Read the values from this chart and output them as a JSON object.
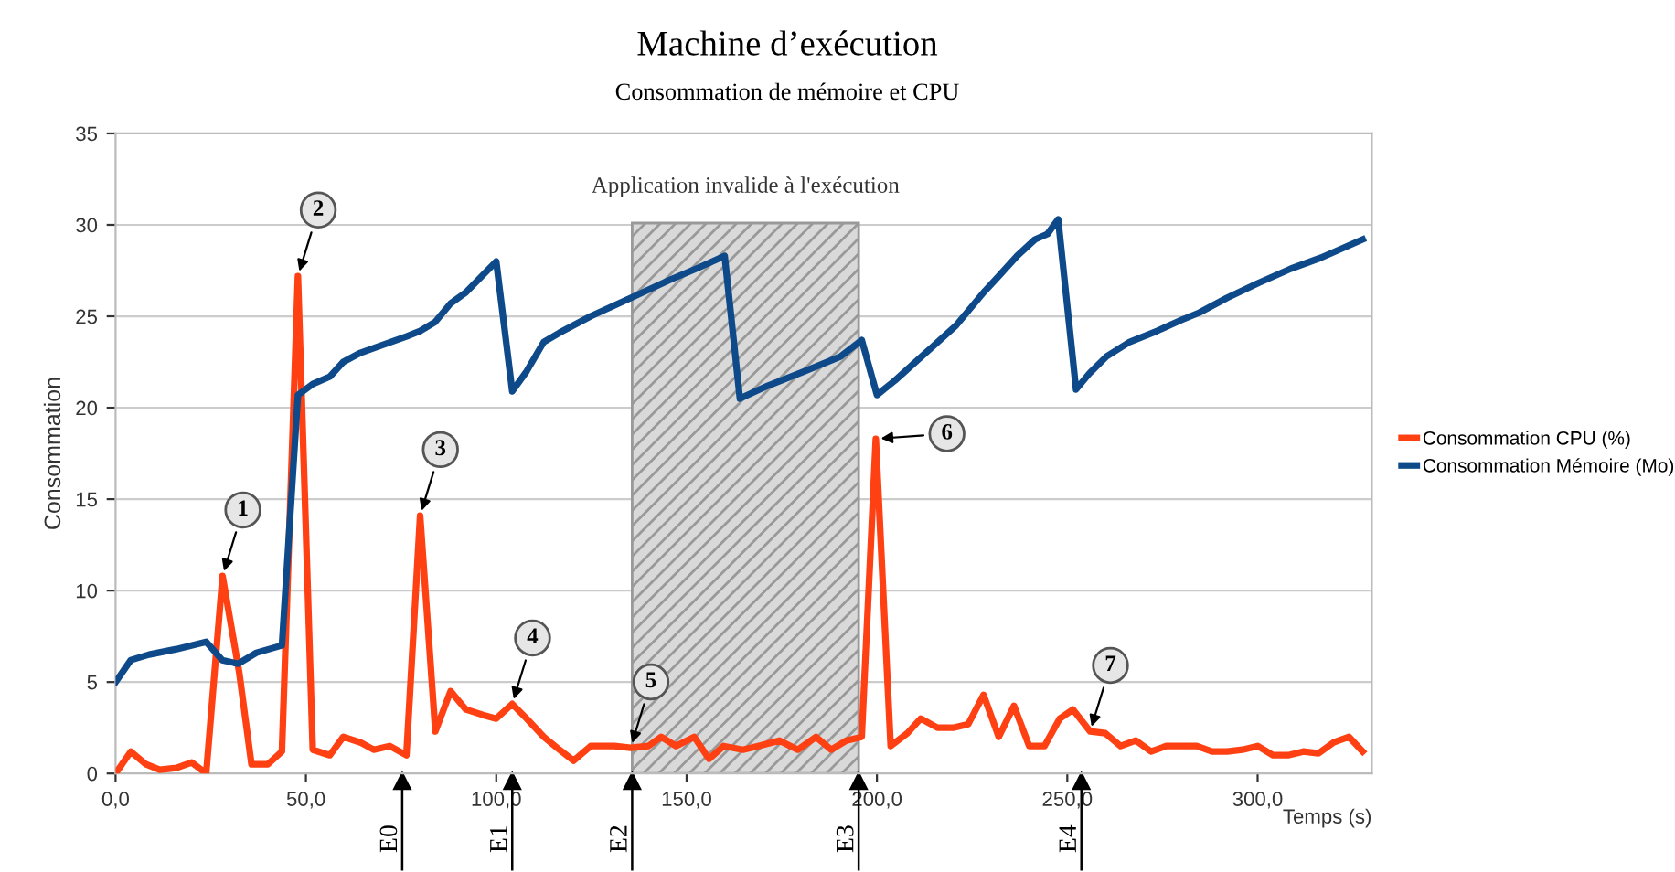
{
  "chart_data": {
    "type": "line",
    "title": "Machine d’exécution",
    "subtitle": "Consommation de mémoire et CPU",
    "xlabel": "Temps (s)",
    "ylabel": "Consommation",
    "xlim": [
      0,
      330
    ],
    "xticks": [
      {
        "value": 0,
        "label": "0,0"
      },
      {
        "value": 50,
        "label": "50,0"
      },
      {
        "value": 100,
        "label": "100,0"
      },
      {
        "value": 150,
        "label": "150,0"
      },
      {
        "value": 200,
        "label": "200,0"
      },
      {
        "value": 250,
        "label": "250,0"
      },
      {
        "value": 300,
        "label": "300,0"
      }
    ],
    "ylim": [
      0,
      35
    ],
    "yticks": [
      0,
      5,
      10,
      15,
      20,
      25,
      30,
      35
    ],
    "grid": "y",
    "legend": "right",
    "line_style": "solid",
    "series": [
      {
        "name": "Consommation CPU (%)",
        "color": "#ff4013",
        "x": [
          0,
          4,
          8,
          11.6,
          16,
          20,
          23.8,
          28.1,
          32.5,
          35.7,
          40,
          43.7,
          47.9,
          51.8,
          56.3,
          59.8,
          64.3,
          67.8,
          72,
          76.4,
          80,
          84,
          88,
          92,
          96.5,
          100,
          104.2,
          108,
          112.5,
          116.6,
          120.3,
          124.8,
          131,
          135.3,
          140,
          143.3,
          147.2,
          152,
          155.9,
          159.7,
          164.8,
          168.8,
          174.4,
          179.2,
          184,
          188,
          192,
          196,
          199.7,
          203.6,
          208,
          211.5,
          215.9,
          220,
          224,
          228,
          232,
          236,
          240,
          244,
          248,
          251.5,
          256,
          260,
          264,
          268,
          272,
          276,
          280,
          284,
          288,
          292,
          296,
          300,
          304,
          308,
          312,
          316,
          320,
          324,
          327.6
        ],
        "values": [
          0,
          1.2,
          0.5,
          0.2,
          0.3,
          0.6,
          0,
          10.8,
          5.5,
          0.5,
          0.5,
          1.2,
          27.2,
          1.3,
          1.0,
          2.0,
          1.7,
          1.3,
          1.5,
          1.0,
          14.1,
          2.3,
          4.5,
          3.5,
          3.2,
          3.0,
          3.8,
          3.0,
          2.0,
          1.3,
          0.7,
          1.5,
          1.5,
          1.4,
          1.5,
          2.0,
          1.5,
          2.0,
          0.8,
          1.5,
          1.3,
          1.5,
          1.8,
          1.3,
          2.0,
          1.3,
          1.8,
          2.0,
          18.3,
          1.5,
          2.2,
          3.0,
          2.5,
          2.5,
          2.7,
          4.3,
          2.0,
          3.7,
          1.5,
          1.5,
          3.0,
          3.5,
          2.3,
          2.2,
          1.5,
          1.8,
          1.2,
          1.5,
          1.5,
          1.5,
          1.2,
          1.2,
          1.3,
          1.5,
          1.0,
          1.0,
          1.2,
          1.1,
          1.7,
          2.0,
          1.2
        ]
      },
      {
        "name": "Consommation Mémoire (Mo)",
        "color": "#0e4a8a",
        "x": [
          0,
          4,
          8.8,
          16,
          23.8,
          28,
          32.2,
          37,
          43.7,
          47.9,
          51.8,
          56.3,
          59.8,
          64.3,
          68.3,
          76.4,
          80,
          84,
          88,
          92,
          100,
          104.2,
          108,
          112.5,
          116.6,
          124.8,
          135.3,
          145.7,
          153.6,
          160,
          164,
          171.3,
          181,
          190.4,
          196,
          200,
          204.8,
          212.8,
          220.8,
          228,
          232,
          236.8,
          241.5,
          244.8,
          247.6,
          252.3,
          255.9,
          260.3,
          266.4,
          273.6,
          280,
          284.7,
          291.9,
          300,
          308.7,
          316.6,
          327.6
        ],
        "values": [
          5.0,
          6.2,
          6.5,
          6.8,
          7.2,
          6.2,
          6.0,
          6.6,
          7.0,
          20.7,
          21.3,
          21.7,
          22.5,
          23.0,
          23.3,
          23.9,
          24.2,
          24.7,
          25.7,
          26.3,
          28.0,
          20.9,
          22.0,
          23.6,
          24.1,
          25.0,
          26.0,
          27.0,
          27.7,
          28.3,
          20.5,
          21.2,
          22.0,
          22.8,
          23.7,
          20.7,
          21.5,
          23.0,
          24.5,
          26.3,
          27.2,
          28.3,
          29.2,
          29.5,
          30.3,
          21.0,
          21.9,
          22.8,
          23.6,
          24.2,
          24.8,
          25.2,
          26.0,
          26.8,
          27.6,
          28.2,
          29.2
        ]
      }
    ],
    "bands": [
      {
        "axis": "x",
        "from": 135.7,
        "to": 195.2,
        "label": "Application invalide à l'exécution",
        "color": "#d9d9d9"
      }
    ],
    "annotations": [
      {
        "text": "1",
        "x": 28.1,
        "y": 10.8
      },
      {
        "text": "2",
        "x": 47.9,
        "y": 27.2
      },
      {
        "text": "3",
        "x": 80,
        "y": 14.1
      },
      {
        "text": "4",
        "x": 104.2,
        "y": 3.8
      },
      {
        "text": "5",
        "x": 135.3,
        "y": 1.4
      },
      {
        "text": "6",
        "x": 199.7,
        "y": 18.3
      },
      {
        "text": "7",
        "x": 256,
        "y": 2.3
      },
      {
        "text": "E0",
        "x": 75.3
      },
      {
        "text": "E1",
        "x": 104.2
      },
      {
        "text": "E2",
        "x": 135.7
      },
      {
        "text": "E3",
        "x": 195.2
      },
      {
        "text": "E4",
        "x": 253.7
      }
    ]
  }
}
